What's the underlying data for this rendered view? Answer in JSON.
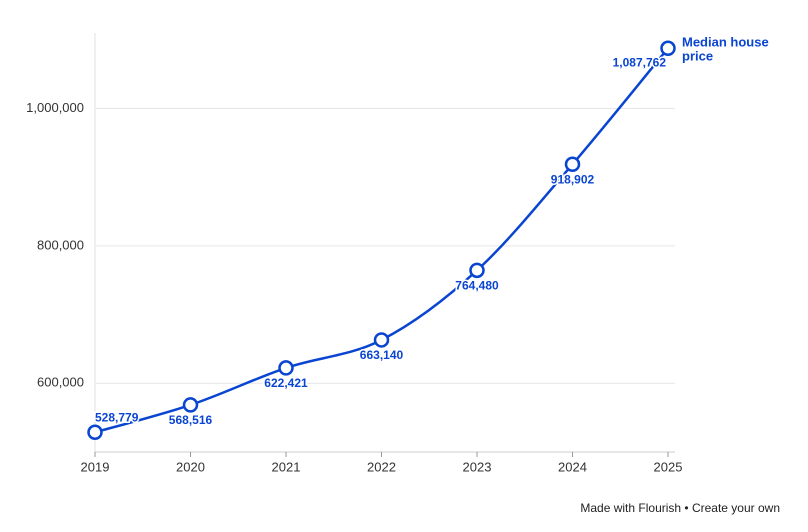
{
  "chart_data": {
    "type": "line",
    "categories": [
      "2019",
      "2020",
      "2021",
      "2022",
      "2023",
      "2024",
      "2025"
    ],
    "series": [
      {
        "name": "Median house price",
        "color": "#0a45d1",
        "values": [
          528779,
          568516,
          622421,
          663140,
          764480,
          918902,
          1087762
        ],
        "value_labels": [
          "528,779",
          "568,516",
          "622,421",
          "663,140",
          "764,480",
          "918,902",
          "1,087,762"
        ]
      }
    ],
    "ylim": [
      500000,
      1110000
    ],
    "yticks": [
      {
        "value": 600000,
        "label": "600,000"
      },
      {
        "value": 800000,
        "label": "800,000"
      },
      {
        "value": 1000000,
        "label": "1,000,000"
      }
    ],
    "grid": true
  },
  "footer": "Made with Flourish • Create your own"
}
